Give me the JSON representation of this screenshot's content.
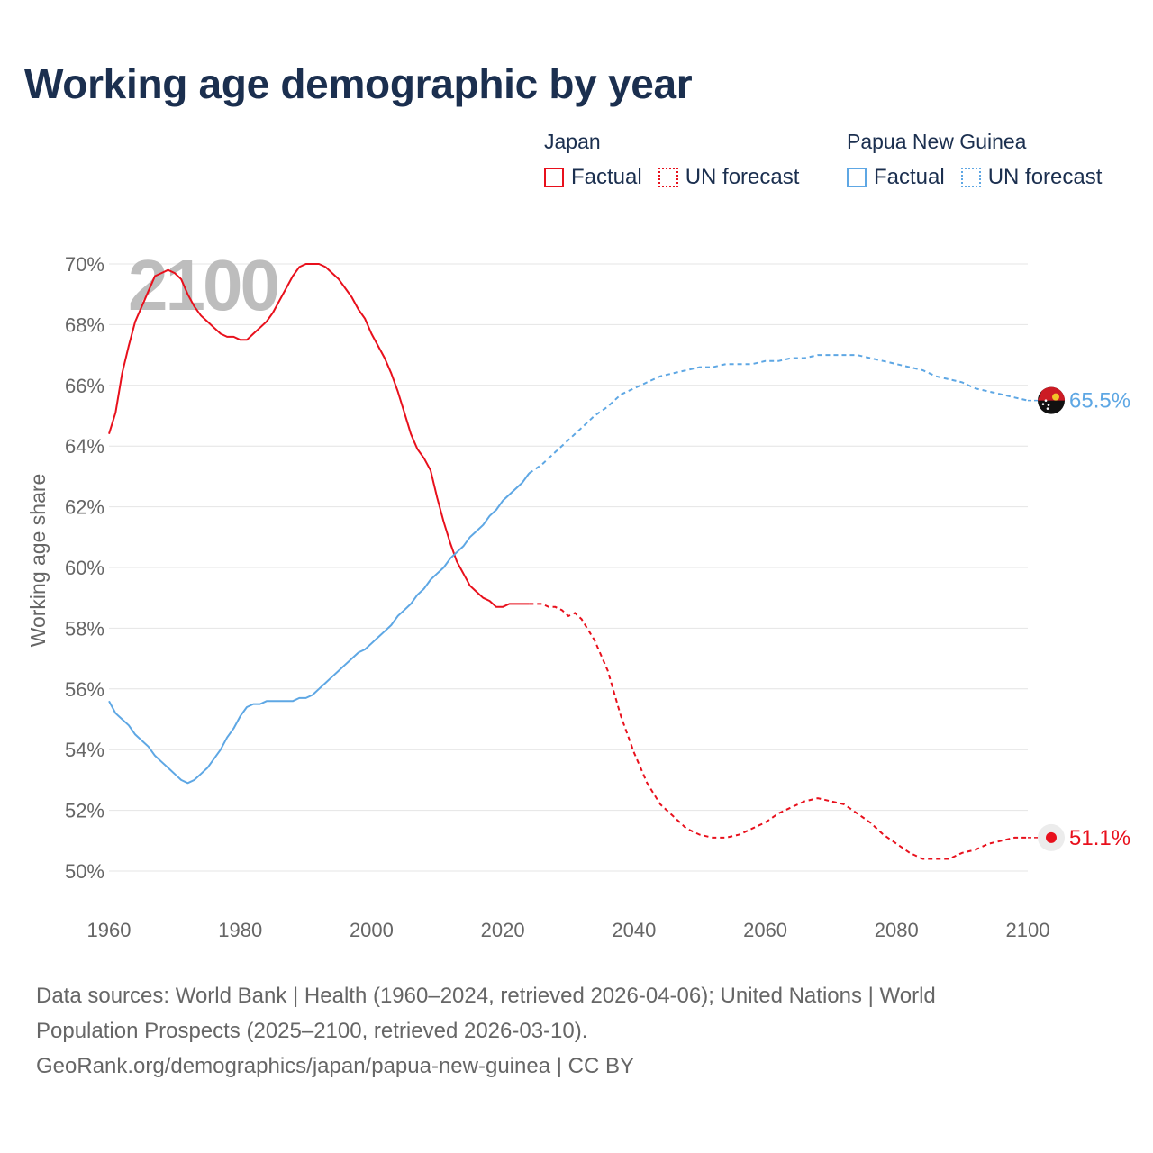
{
  "title": "Working age demographic by year",
  "legend": {
    "japan": {
      "name": "Japan",
      "factual": "Factual",
      "forecast": "UN forecast",
      "color": "#e8101c"
    },
    "png": {
      "name": "Papua New Guinea",
      "factual": "Factual",
      "forecast": "UN forecast",
      "color": "#5ea7e4"
    }
  },
  "footer": {
    "line1": "Data sources: World Bank | Health (1960–2024, retrieved 2026-04-06); United Nations | World",
    "line2": "Population Prospects (2025–2100, retrieved 2026-03-10).",
    "line3": "GeoRank.org/demographics/japan/papua-new-guinea | CC BY"
  },
  "chart_data": {
    "type": "line",
    "title": "Working age demographic by year",
    "year_label": "2100",
    "ylabel": "Working age share",
    "xlabel": "",
    "xlim": [
      1960,
      2100
    ],
    "ylim": [
      50,
      70
    ],
    "x_ticks": [
      "1960",
      "1980",
      "2000",
      "2020",
      "2040",
      "2060",
      "2080",
      "2100"
    ],
    "y_ticks": [
      "50%",
      "52%",
      "54%",
      "56%",
      "58%",
      "60%",
      "62%",
      "64%",
      "66%",
      "68%",
      "70%"
    ],
    "grid": true,
    "series": [
      {
        "name": "Japan",
        "color": "#e8101c",
        "end_label": "51.1%",
        "factual_range": [
          1960,
          2024
        ],
        "forecast_range": [
          2024,
          2100
        ],
        "points": [
          [
            1960,
            64.4
          ],
          [
            1961,
            65.1
          ],
          [
            1962,
            66.4
          ],
          [
            1963,
            67.3
          ],
          [
            1964,
            68.1
          ],
          [
            1965,
            68.6
          ],
          [
            1966,
            69.1
          ],
          [
            1967,
            69.6
          ],
          [
            1968,
            69.7
          ],
          [
            1969,
            69.8
          ],
          [
            1970,
            69.7
          ],
          [
            1971,
            69.5
          ],
          [
            1972,
            69.0
          ],
          [
            1973,
            68.6
          ],
          [
            1974,
            68.3
          ],
          [
            1975,
            68.1
          ],
          [
            1976,
            67.9
          ],
          [
            1977,
            67.7
          ],
          [
            1978,
            67.6
          ],
          [
            1979,
            67.6
          ],
          [
            1980,
            67.5
          ],
          [
            1981,
            67.5
          ],
          [
            1982,
            67.7
          ],
          [
            1983,
            67.9
          ],
          [
            1984,
            68.1
          ],
          [
            1985,
            68.4
          ],
          [
            1986,
            68.8
          ],
          [
            1987,
            69.2
          ],
          [
            1988,
            69.6
          ],
          [
            1989,
            69.9
          ],
          [
            1990,
            70.0
          ],
          [
            1991,
            70.0
          ],
          [
            1992,
            70.0
          ],
          [
            1993,
            69.9
          ],
          [
            1994,
            69.7
          ],
          [
            1995,
            69.5
          ],
          [
            1996,
            69.2
          ],
          [
            1997,
            68.9
          ],
          [
            1998,
            68.5
          ],
          [
            1999,
            68.2
          ],
          [
            2000,
            67.7
          ],
          [
            2001,
            67.3
          ],
          [
            2002,
            66.9
          ],
          [
            2003,
            66.4
          ],
          [
            2004,
            65.8
          ],
          [
            2005,
            65.1
          ],
          [
            2006,
            64.4
          ],
          [
            2007,
            63.9
          ],
          [
            2008,
            63.6
          ],
          [
            2009,
            63.2
          ],
          [
            2010,
            62.3
          ],
          [
            2011,
            61.5
          ],
          [
            2012,
            60.8
          ],
          [
            2013,
            60.2
          ],
          [
            2014,
            59.8
          ],
          [
            2015,
            59.4
          ],
          [
            2016,
            59.2
          ],
          [
            2017,
            59.0
          ],
          [
            2018,
            58.9
          ],
          [
            2019,
            58.7
          ],
          [
            2020,
            58.7
          ],
          [
            2021,
            58.8
          ],
          [
            2022,
            58.8
          ],
          [
            2023,
            58.8
          ],
          [
            2024,
            58.8
          ],
          [
            2025,
            58.8
          ],
          [
            2026,
            58.8
          ],
          [
            2027,
            58.7
          ],
          [
            2028,
            58.7
          ],
          [
            2029,
            58.6
          ],
          [
            2030,
            58.4
          ],
          [
            2031,
            58.5
          ],
          [
            2032,
            58.3
          ],
          [
            2034,
            57.6
          ],
          [
            2036,
            56.6
          ],
          [
            2038,
            55.1
          ],
          [
            2040,
            53.9
          ],
          [
            2042,
            52.9
          ],
          [
            2044,
            52.2
          ],
          [
            2046,
            51.8
          ],
          [
            2048,
            51.4
          ],
          [
            2050,
            51.2
          ],
          [
            2052,
            51.1
          ],
          [
            2054,
            51.1
          ],
          [
            2056,
            51.2
          ],
          [
            2058,
            51.4
          ],
          [
            2060,
            51.6
          ],
          [
            2062,
            51.9
          ],
          [
            2064,
            52.1
          ],
          [
            2066,
            52.3
          ],
          [
            2068,
            52.4
          ],
          [
            2070,
            52.3
          ],
          [
            2072,
            52.2
          ],
          [
            2074,
            51.9
          ],
          [
            2076,
            51.6
          ],
          [
            2078,
            51.2
          ],
          [
            2080,
            50.9
          ],
          [
            2082,
            50.6
          ],
          [
            2084,
            50.4
          ],
          [
            2086,
            50.4
          ],
          [
            2088,
            50.4
          ],
          [
            2090,
            50.6
          ],
          [
            2092,
            50.7
          ],
          [
            2094,
            50.9
          ],
          [
            2096,
            51.0
          ],
          [
            2098,
            51.1
          ],
          [
            2100,
            51.1
          ]
        ]
      },
      {
        "name": "Papua New Guinea",
        "color": "#5ea7e4",
        "end_label": "65.5%",
        "factual_range": [
          1960,
          2024
        ],
        "forecast_range": [
          2024,
          2100
        ],
        "points": [
          [
            1960,
            55.6
          ],
          [
            1961,
            55.2
          ],
          [
            1962,
            55.0
          ],
          [
            1963,
            54.8
          ],
          [
            1964,
            54.5
          ],
          [
            1965,
            54.3
          ],
          [
            1966,
            54.1
          ],
          [
            1967,
            53.8
          ],
          [
            1968,
            53.6
          ],
          [
            1969,
            53.4
          ],
          [
            1970,
            53.2
          ],
          [
            1971,
            53.0
          ],
          [
            1972,
            52.9
          ],
          [
            1973,
            53.0
          ],
          [
            1974,
            53.2
          ],
          [
            1975,
            53.4
          ],
          [
            1976,
            53.7
          ],
          [
            1977,
            54.0
          ],
          [
            1978,
            54.4
          ],
          [
            1979,
            54.7
          ],
          [
            1980,
            55.1
          ],
          [
            1981,
            55.4
          ],
          [
            1982,
            55.5
          ],
          [
            1983,
            55.5
          ],
          [
            1984,
            55.6
          ],
          [
            1985,
            55.6
          ],
          [
            1986,
            55.6
          ],
          [
            1987,
            55.6
          ],
          [
            1988,
            55.6
          ],
          [
            1989,
            55.7
          ],
          [
            1990,
            55.7
          ],
          [
            1991,
            55.8
          ],
          [
            1992,
            56.0
          ],
          [
            1993,
            56.2
          ],
          [
            1994,
            56.4
          ],
          [
            1995,
            56.6
          ],
          [
            1996,
            56.8
          ],
          [
            1997,
            57.0
          ],
          [
            1998,
            57.2
          ],
          [
            1999,
            57.3
          ],
          [
            2000,
            57.5
          ],
          [
            2001,
            57.7
          ],
          [
            2002,
            57.9
          ],
          [
            2003,
            58.1
          ],
          [
            2004,
            58.4
          ],
          [
            2005,
            58.6
          ],
          [
            2006,
            58.8
          ],
          [
            2007,
            59.1
          ],
          [
            2008,
            59.3
          ],
          [
            2009,
            59.6
          ],
          [
            2010,
            59.8
          ],
          [
            2011,
            60.0
          ],
          [
            2012,
            60.3
          ],
          [
            2013,
            60.5
          ],
          [
            2014,
            60.7
          ],
          [
            2015,
            61.0
          ],
          [
            2016,
            61.2
          ],
          [
            2017,
            61.4
          ],
          [
            2018,
            61.7
          ],
          [
            2019,
            61.9
          ],
          [
            2020,
            62.2
          ],
          [
            2021,
            62.4
          ],
          [
            2022,
            62.6
          ],
          [
            2023,
            62.8
          ],
          [
            2024,
            63.1
          ],
          [
            2026,
            63.4
          ],
          [
            2028,
            63.8
          ],
          [
            2030,
            64.2
          ],
          [
            2032,
            64.6
          ],
          [
            2034,
            65.0
          ],
          [
            2036,
            65.3
          ],
          [
            2038,
            65.7
          ],
          [
            2040,
            65.9
          ],
          [
            2042,
            66.1
          ],
          [
            2044,
            66.3
          ],
          [
            2046,
            66.4
          ],
          [
            2048,
            66.5
          ],
          [
            2050,
            66.6
          ],
          [
            2052,
            66.6
          ],
          [
            2054,
            66.7
          ],
          [
            2056,
            66.7
          ],
          [
            2058,
            66.7
          ],
          [
            2060,
            66.8
          ],
          [
            2062,
            66.8
          ],
          [
            2064,
            66.9
          ],
          [
            2066,
            66.9
          ],
          [
            2068,
            67.0
          ],
          [
            2070,
            67.0
          ],
          [
            2072,
            67.0
          ],
          [
            2074,
            67.0
          ],
          [
            2076,
            66.9
          ],
          [
            2078,
            66.8
          ],
          [
            2080,
            66.7
          ],
          [
            2082,
            66.6
          ],
          [
            2084,
            66.5
          ],
          [
            2086,
            66.3
          ],
          [
            2088,
            66.2
          ],
          [
            2090,
            66.1
          ],
          [
            2092,
            65.9
          ],
          [
            2094,
            65.8
          ],
          [
            2096,
            65.7
          ],
          [
            2098,
            65.6
          ],
          [
            2100,
            65.5
          ]
        ]
      }
    ]
  }
}
